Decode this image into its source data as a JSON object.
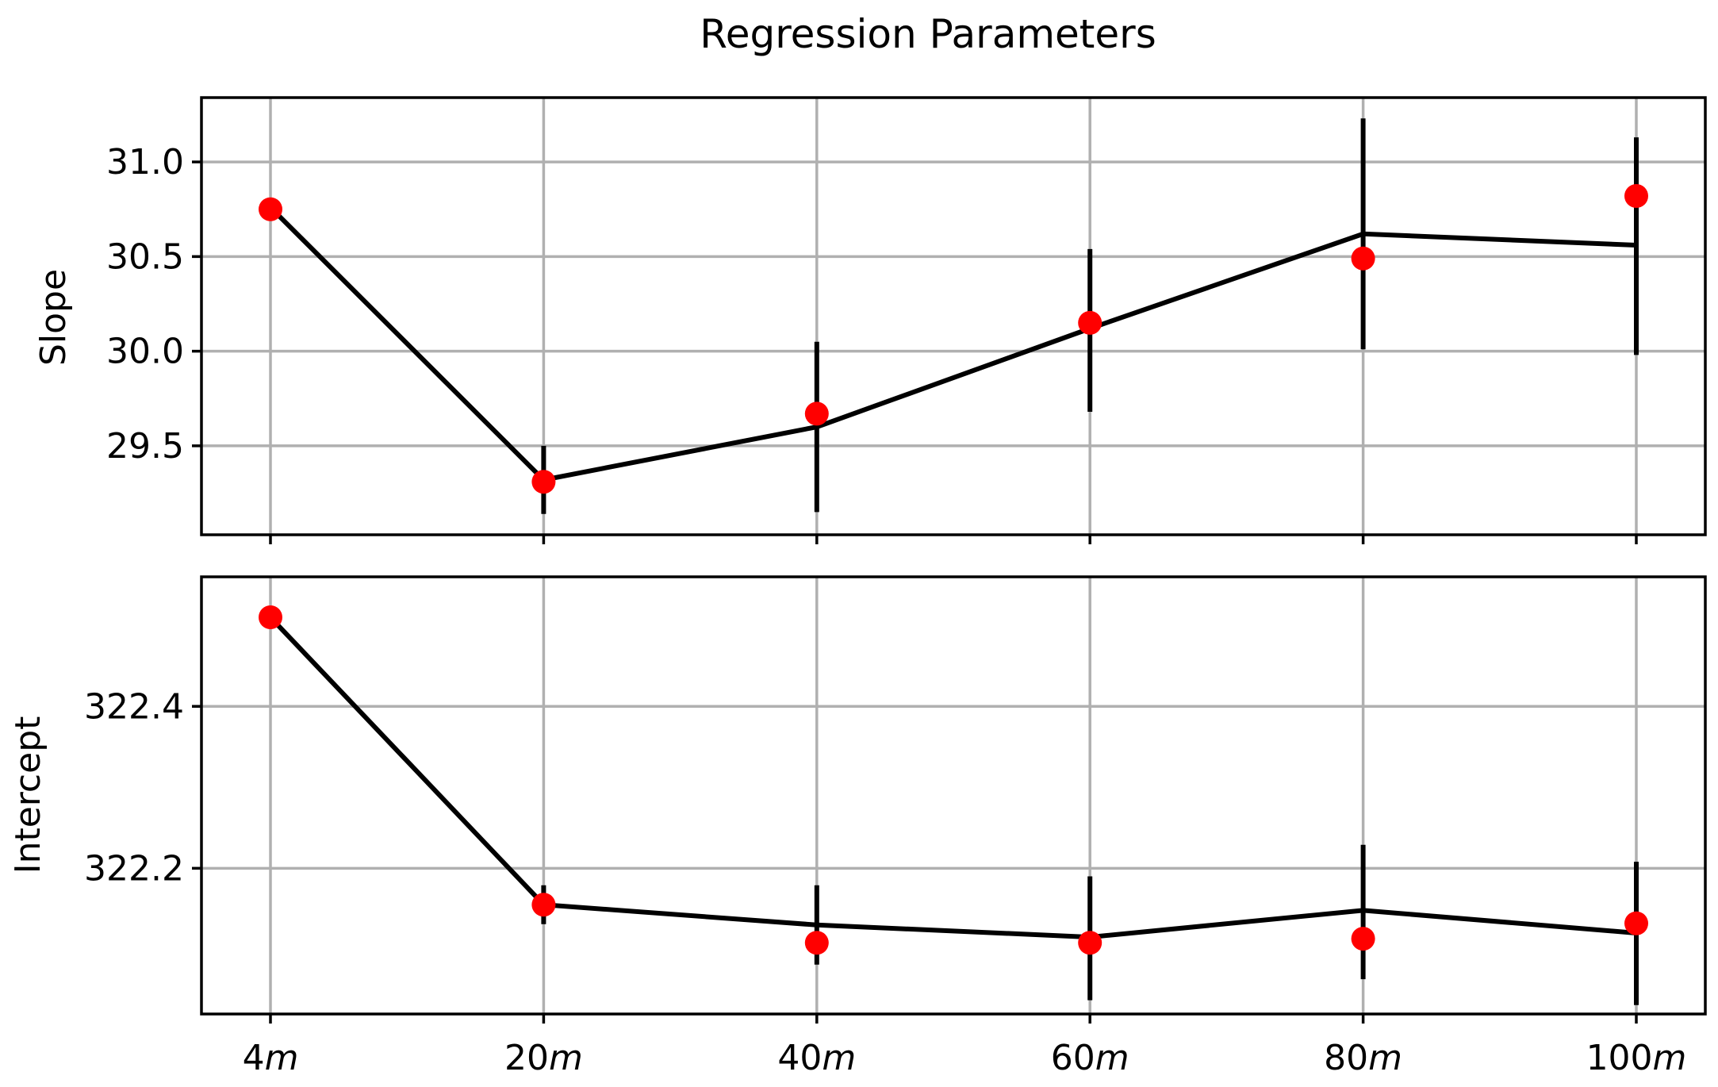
{
  "chart_data": [
    {
      "type": "line",
      "title": "Regression Parameters",
      "ylabel": "Slope",
      "categories": [
        "4m",
        "20m",
        "40m",
        "60m",
        "80m",
        "100m"
      ],
      "ylim": [
        29.03,
        31.34
      ],
      "yticks": [
        29.5,
        30.0,
        30.5,
        31.0
      ],
      "ytick_labels": [
        "29.5",
        "30.0",
        "30.5",
        "31.0"
      ],
      "grid": true,
      "series": [
        {
          "kind": "fit-line-with-errorbars",
          "color": "#000000",
          "values": [
            30.76,
            29.32,
            29.6,
            30.12,
            30.62,
            30.56
          ],
          "err_low": [
            30.76,
            29.14,
            29.15,
            29.68,
            30.01,
            29.98
          ],
          "err_high": [
            30.76,
            29.5,
            30.05,
            30.54,
            31.23,
            31.13
          ]
        },
        {
          "kind": "points",
          "color": "#ff0000",
          "values": [
            30.75,
            29.31,
            29.67,
            30.15,
            30.49,
            30.82
          ]
        }
      ]
    },
    {
      "type": "line",
      "ylabel": "Intercept",
      "categories": [
        "4m",
        "20m",
        "40m",
        "60m",
        "80m",
        "100m"
      ],
      "ylim": [
        322.02,
        322.56
      ],
      "yticks": [
        322.2,
        322.4
      ],
      "ytick_labels": [
        "322.2",
        "322.4"
      ],
      "grid": true,
      "series": [
        {
          "kind": "fit-line-with-errorbars",
          "color": "#000000",
          "values": [
            322.51,
            322.155,
            322.13,
            322.115,
            322.148,
            322.12
          ],
          "err_low": [
            322.51,
            322.131,
            322.081,
            322.037,
            322.063,
            322.031
          ],
          "err_high": [
            322.51,
            322.179,
            322.179,
            322.19,
            322.229,
            322.208
          ]
        },
        {
          "kind": "points",
          "color": "#ff0000",
          "values": [
            322.51,
            322.155,
            322.108,
            322.108,
            322.113,
            322.132
          ]
        }
      ]
    }
  ]
}
